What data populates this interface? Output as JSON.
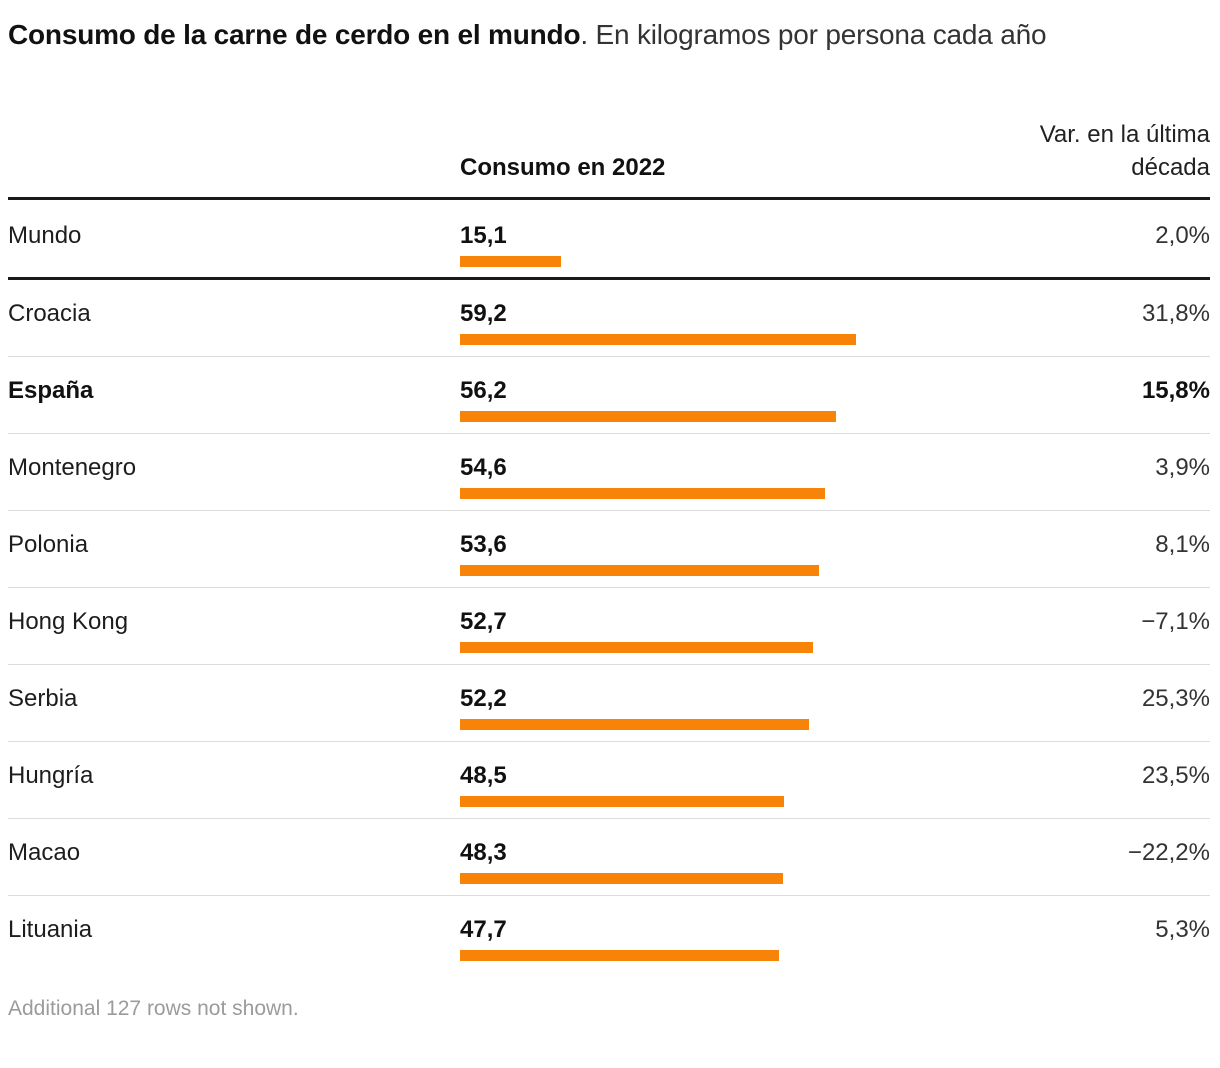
{
  "title": {
    "bold": "Consumo de la carne de cerdo en el mundo",
    "regular": ". En kilogramos por persona cada año"
  },
  "columns": {
    "consumption": "Consumo en 2022",
    "variation": "Var. en la última década"
  },
  "footer_note": "Additional 127 rows not shown.",
  "colors": {
    "bar": "#F78408",
    "dark_rule": "#1a1a1a",
    "light_rule": "#dcdcdc",
    "footer_text": "#9b9b9b"
  },
  "chart_data": {
    "type": "bar",
    "title": "Consumo de la carne de cerdo en el mundo",
    "subtitle": "En kilogramos por persona cada año",
    "value_column_label": "Consumo en 2022",
    "variation_column_label": "Var. en la última década",
    "orientation": "horizontal",
    "max_value": 59.2,
    "xlim": [
      0,
      59.2
    ],
    "rows": [
      {
        "label": "Mundo",
        "value": 15.1,
        "value_display": "15,1",
        "variation": "2,0%",
        "emphasis": false
      },
      {
        "label": "Croacia",
        "value": 59.2,
        "value_display": "59,2",
        "variation": "31,8%",
        "emphasis": false
      },
      {
        "label": "España",
        "value": 56.2,
        "value_display": "56,2",
        "variation": "15,8%",
        "emphasis": true
      },
      {
        "label": "Montenegro",
        "value": 54.6,
        "value_display": "54,6",
        "variation": "3,9%",
        "emphasis": false
      },
      {
        "label": "Polonia",
        "value": 53.6,
        "value_display": "53,6",
        "variation": "8,1%",
        "emphasis": false
      },
      {
        "label": "Hong Kong",
        "value": 52.7,
        "value_display": "52,7",
        "variation": "−7,1%",
        "emphasis": false
      },
      {
        "label": "Serbia",
        "value": 52.2,
        "value_display": "52,2",
        "variation": "25,3%",
        "emphasis": false
      },
      {
        "label": "Hungría",
        "value": 48.5,
        "value_display": "48,5",
        "variation": "23,5%",
        "emphasis": false
      },
      {
        "label": "Macao",
        "value": 48.3,
        "value_display": "48,3",
        "variation": "−22,2%",
        "emphasis": false
      },
      {
        "label": "Lituania",
        "value": 47.7,
        "value_display": "47,7",
        "variation": "5,3%",
        "emphasis": false
      }
    ]
  }
}
